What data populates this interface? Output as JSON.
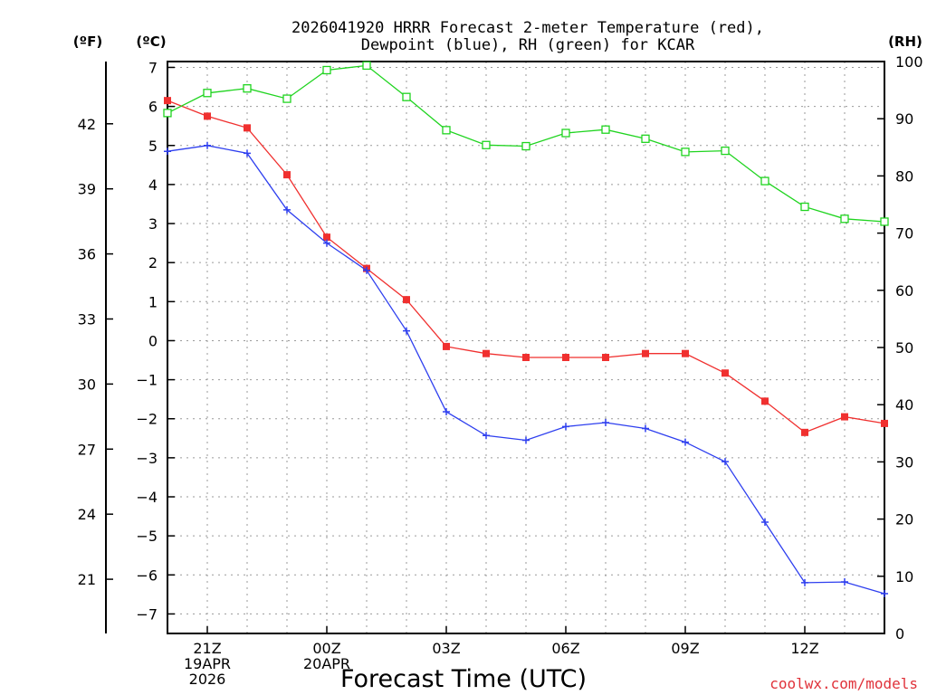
{
  "chart_data": {
    "type": "line",
    "title_line1": "2026041920 HRRR Forecast 2-meter Temperature (red),",
    "title_line2": "Dewpoint (blue), RH (green) for KCAR",
    "xlabel": "Forecast Time (UTC)",
    "left_outer_unit": "(ºF)",
    "left_inner_unit": "(ºC)",
    "right_unit": "(RH)",
    "credit": "coolwx.com/models",
    "x_ticks": [
      {
        "h": 1,
        "lines": [
          "21Z",
          "19APR",
          "2026"
        ]
      },
      {
        "h": 4,
        "lines": [
          "00Z",
          "20APR"
        ]
      },
      {
        "h": 7,
        "lines": [
          "03Z"
        ]
      },
      {
        "h": 10,
        "lines": [
          "06Z"
        ]
      },
      {
        "h": 13,
        "lines": [
          "09Z"
        ]
      },
      {
        "h": 16,
        "lines": [
          "12Z"
        ]
      }
    ],
    "x_range": [
      0,
      18
    ],
    "celsius_axis": {
      "min": -7.5,
      "max": 7.15,
      "ticks": [
        7,
        6,
        5,
        4,
        3,
        2,
        1,
        0,
        -1,
        -2,
        -3,
        -4,
        -5,
        -6,
        -7
      ],
      "tick_labels": [
        "7",
        "6",
        "5",
        "4",
        "3",
        "2",
        "1",
        "0",
        "−1",
        "−2",
        "−3",
        "−4",
        "−5",
        "−6",
        "−7"
      ]
    },
    "fahrenheit_ticks": [
      21,
      24,
      27,
      30,
      33,
      36,
      39,
      42
    ],
    "rh_axis": {
      "min": 0,
      "max": 100,
      "ticks": [
        0,
        10,
        20,
        30,
        40,
        50,
        60,
        70,
        80,
        90,
        100
      ]
    },
    "series": [
      {
        "name": "Temperature",
        "color": "#f0302f",
        "marker": "filled-square",
        "hours": [
          0,
          1,
          2,
          3,
          4,
          5,
          6,
          7,
          8,
          9,
          10,
          11,
          12,
          13,
          14,
          15,
          16,
          17,
          18
        ],
        "values": [
          6.15,
          5.75,
          5.45,
          4.25,
          2.65,
          1.85,
          1.05,
          -0.15,
          -0.33,
          -0.43,
          -0.43,
          -0.43,
          -0.33,
          -0.33,
          -0.83,
          -1.55,
          -2.35,
          -1.95,
          -2.12
        ]
      },
      {
        "name": "Dewpoint",
        "color": "#2e3fef",
        "marker": "plus",
        "hours": [
          0,
          1,
          2,
          3,
          4,
          5,
          6,
          7,
          8,
          9,
          10,
          11,
          12,
          13,
          14,
          15,
          16,
          17,
          18
        ],
        "values": [
          4.85,
          5.0,
          4.8,
          3.35,
          2.5,
          1.8,
          0.25,
          -1.82,
          -2.43,
          -2.55,
          -2.2,
          -2.1,
          -2.25,
          -2.6,
          -3.1,
          -4.65,
          -6.2,
          -6.18,
          -6.48
        ]
      },
      {
        "name": "RH",
        "color": "#1fd41f",
        "marker": "open-square",
        "hours": [
          0,
          1,
          2,
          3,
          4,
          5,
          6,
          7,
          8,
          9,
          10,
          11,
          12,
          13,
          14,
          15,
          16,
          17,
          18
        ],
        "values": [
          91,
          94.5,
          95.3,
          93.5,
          98.5,
          99.3,
          93.8,
          88,
          85.4,
          85.2,
          87.5,
          88.1,
          86.5,
          84.2,
          84.4,
          79.1,
          74.6,
          72.5,
          72
        ]
      }
    ]
  }
}
